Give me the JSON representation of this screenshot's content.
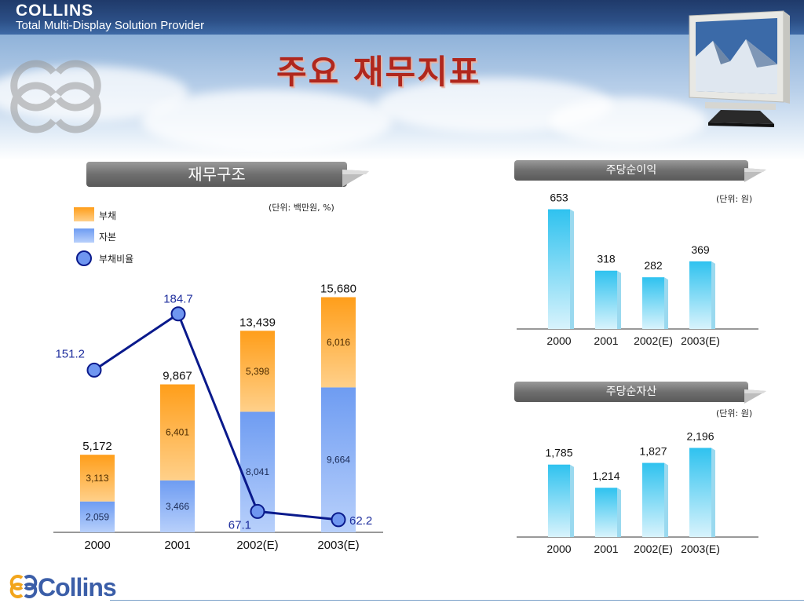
{
  "header": {
    "brand": "COLLINS",
    "tagline": "Total Multi-Display Solution Provider"
  },
  "title": "주요 재무지표",
  "footer": {
    "logo_text": "Collins"
  },
  "colors": {
    "debt_top": "#ff9e1a",
    "debt_bottom": "#ffd08a",
    "equity_top": "#6e9cf2",
    "equity_bottom": "#b8d0fb",
    "ratio_line": "#0a1a8c",
    "ratio_label": "#1f2f9e",
    "bar_cyan": "#3cc6f0"
  },
  "panels": {
    "structure": {
      "title": "재무구조",
      "unit": "(단위: 백만원, %)",
      "legend": [
        "부채",
        "자본",
        "부채비율"
      ]
    },
    "eps": {
      "title": "주당순이익",
      "unit": "(단위: 원)"
    },
    "bps": {
      "title": "주당순자산",
      "unit": "(단위: 원)"
    }
  },
  "chart_data": [
    {
      "type": "bar",
      "stacked": true,
      "categories": [
        "2000",
        "2001",
        "2002(E)",
        "2003(E)"
      ],
      "series": [
        {
          "name": "자본",
          "values": [
            2059,
            3466,
            8041,
            9664
          ]
        },
        {
          "name": "부채",
          "values": [
            3113,
            6401,
            5398,
            6016
          ]
        }
      ],
      "totals": [
        5172,
        9867,
        13439,
        15680
      ],
      "value_labels": [
        "2,059",
        "3,466",
        "8,041",
        "9,664"
      ],
      "debt_labels": [
        "3,113",
        "6,401",
        "5,398",
        "6,016"
      ],
      "total_labels": [
        "5,172",
        "9,867",
        "13,439",
        "15,680"
      ],
      "line_series": {
        "name": "부채비율",
        "values": [
          151.2,
          184.7,
          67.1,
          62.2
        ],
        "labels": [
          "151.2",
          "184.7",
          "67.1",
          "62.2"
        ]
      },
      "grid": false
    },
    {
      "type": "bar",
      "categories": [
        "2000",
        "2001",
        "2002(E)",
        "2003(E)"
      ],
      "values": [
        653,
        318,
        282,
        369
      ],
      "value_labels": [
        "653",
        "318",
        "282",
        "369"
      ]
    },
    {
      "type": "bar",
      "categories": [
        "2000",
        "2001",
        "2002(E)",
        "2003(E)"
      ],
      "values": [
        1785,
        1214,
        1827,
        2196
      ],
      "value_labels": [
        "1,785",
        "1,214",
        "1,827",
        "2,196"
      ]
    }
  ]
}
